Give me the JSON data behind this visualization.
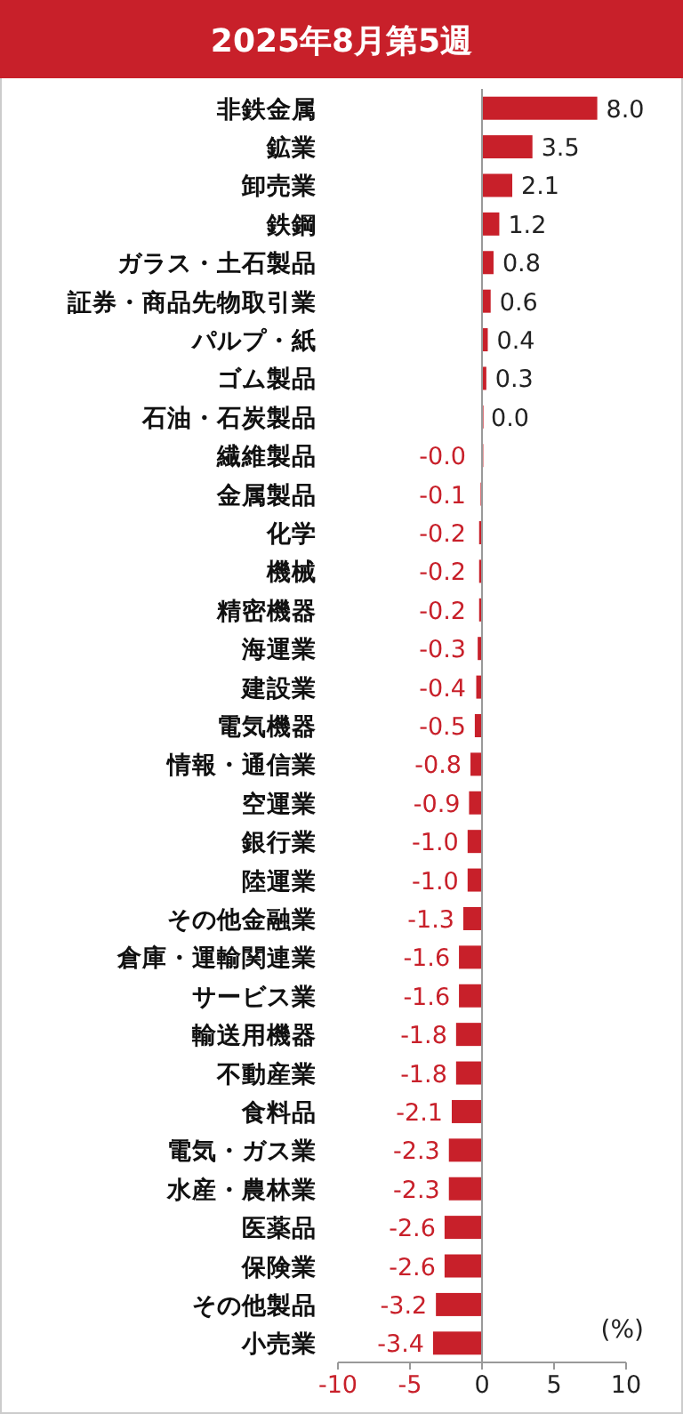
{
  "chart_data": {
    "type": "bar",
    "orientation": "horizontal",
    "title": "2025年8月第5週",
    "categories": [
      "非鉄金属",
      "鉱業",
      "卸売業",
      "鉄鋼",
      "ガラス・土石製品",
      "証券・商品先物取引業",
      "パルプ・紙",
      "ゴム製品",
      "石油・石炭製品",
      "繊維製品",
      "金属製品",
      "化学",
      "機械",
      "精密機器",
      "海運業",
      "建設業",
      "電気機器",
      "情報・通信業",
      "空運業",
      "銀行業",
      "陸運業",
      "その他金融業",
      "倉庫・運輸関連業",
      "サービス業",
      "輸送用機器",
      "不動産業",
      "食料品",
      "電気・ガス業",
      "水産・農林業",
      "医薬品",
      "保険業",
      "その他製品",
      "小売業"
    ],
    "values": [
      8.0,
      3.5,
      2.1,
      1.2,
      0.8,
      0.6,
      0.4,
      0.3,
      0.0,
      -0.01,
      -0.1,
      -0.2,
      -0.2,
      -0.2,
      -0.3,
      -0.4,
      -0.5,
      -0.8,
      -0.9,
      -1.0,
      -1.0,
      -1.3,
      -1.6,
      -1.6,
      -1.8,
      -1.8,
      -2.1,
      -2.3,
      -2.3,
      -2.6,
      -2.6,
      -3.2,
      -3.4
    ],
    "value_labels": [
      "8.0",
      "3.5",
      "2.1",
      "1.2",
      "0.8",
      "0.6",
      "0.4",
      "0.3",
      "0.0",
      "-0.0",
      "-0.1",
      "-0.2",
      "-0.2",
      "-0.2",
      "-0.3",
      "-0.4",
      "-0.5",
      "-0.8",
      "-0.9",
      "-1.0",
      "-1.0",
      "-1.3",
      "-1.6",
      "-1.6",
      "-1.8",
      "-1.8",
      "-2.1",
      "-2.3",
      "-2.3",
      "-2.6",
      "-2.6",
      "-3.2",
      "-3.4"
    ],
    "color": "#c8202a",
    "xlim": [
      -10,
      10
    ],
    "xticks": [
      -10,
      -5,
      0,
      5,
      10
    ],
    "annotations": [
      "(%)"
    ]
  }
}
